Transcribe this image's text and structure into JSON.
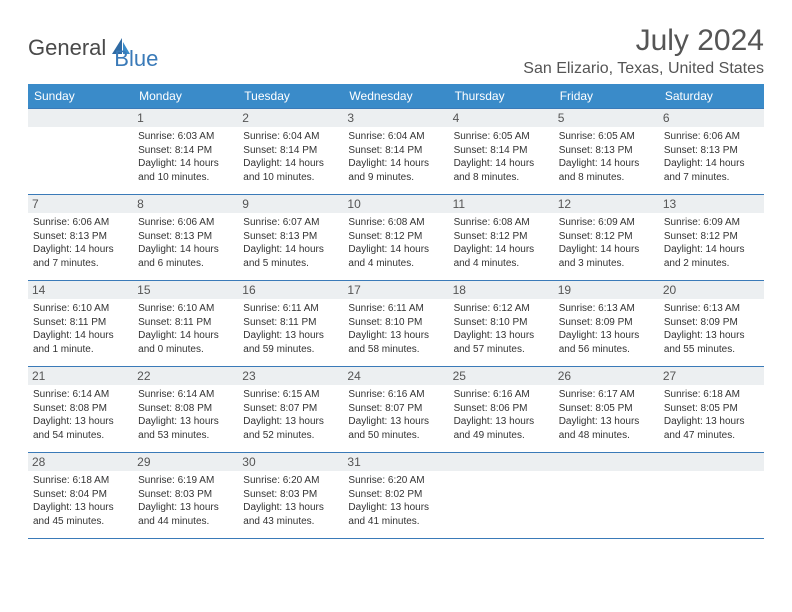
{
  "brand": {
    "part1": "General",
    "part2": "Blue"
  },
  "title": "July 2024",
  "location": "San Elizario, Texas, United States",
  "colors": {
    "header_bg": "#3a8bc9",
    "header_text": "#ffffff",
    "border": "#3a7ab8",
    "daynum_bg": "#eceff1",
    "text": "#333333",
    "brand_blue": "#3a7ab8",
    "brand_gray": "#4a4a4a"
  },
  "day_headers": [
    "Sunday",
    "Monday",
    "Tuesday",
    "Wednesday",
    "Thursday",
    "Friday",
    "Saturday"
  ],
  "weeks": [
    [
      {
        "n": "",
        "sr": "",
        "ss": "",
        "dl": ""
      },
      {
        "n": "1",
        "sr": "Sunrise: 6:03 AM",
        "ss": "Sunset: 8:14 PM",
        "dl": "Daylight: 14 hours and 10 minutes."
      },
      {
        "n": "2",
        "sr": "Sunrise: 6:04 AM",
        "ss": "Sunset: 8:14 PM",
        "dl": "Daylight: 14 hours and 10 minutes."
      },
      {
        "n": "3",
        "sr": "Sunrise: 6:04 AM",
        "ss": "Sunset: 8:14 PM",
        "dl": "Daylight: 14 hours and 9 minutes."
      },
      {
        "n": "4",
        "sr": "Sunrise: 6:05 AM",
        "ss": "Sunset: 8:14 PM",
        "dl": "Daylight: 14 hours and 8 minutes."
      },
      {
        "n": "5",
        "sr": "Sunrise: 6:05 AM",
        "ss": "Sunset: 8:13 PM",
        "dl": "Daylight: 14 hours and 8 minutes."
      },
      {
        "n": "6",
        "sr": "Sunrise: 6:06 AM",
        "ss": "Sunset: 8:13 PM",
        "dl": "Daylight: 14 hours and 7 minutes."
      }
    ],
    [
      {
        "n": "7",
        "sr": "Sunrise: 6:06 AM",
        "ss": "Sunset: 8:13 PM",
        "dl": "Daylight: 14 hours and 7 minutes."
      },
      {
        "n": "8",
        "sr": "Sunrise: 6:06 AM",
        "ss": "Sunset: 8:13 PM",
        "dl": "Daylight: 14 hours and 6 minutes."
      },
      {
        "n": "9",
        "sr": "Sunrise: 6:07 AM",
        "ss": "Sunset: 8:13 PM",
        "dl": "Daylight: 14 hours and 5 minutes."
      },
      {
        "n": "10",
        "sr": "Sunrise: 6:08 AM",
        "ss": "Sunset: 8:12 PM",
        "dl": "Daylight: 14 hours and 4 minutes."
      },
      {
        "n": "11",
        "sr": "Sunrise: 6:08 AM",
        "ss": "Sunset: 8:12 PM",
        "dl": "Daylight: 14 hours and 4 minutes."
      },
      {
        "n": "12",
        "sr": "Sunrise: 6:09 AM",
        "ss": "Sunset: 8:12 PM",
        "dl": "Daylight: 14 hours and 3 minutes."
      },
      {
        "n": "13",
        "sr": "Sunrise: 6:09 AM",
        "ss": "Sunset: 8:12 PM",
        "dl": "Daylight: 14 hours and 2 minutes."
      }
    ],
    [
      {
        "n": "14",
        "sr": "Sunrise: 6:10 AM",
        "ss": "Sunset: 8:11 PM",
        "dl": "Daylight: 14 hours and 1 minute."
      },
      {
        "n": "15",
        "sr": "Sunrise: 6:10 AM",
        "ss": "Sunset: 8:11 PM",
        "dl": "Daylight: 14 hours and 0 minutes."
      },
      {
        "n": "16",
        "sr": "Sunrise: 6:11 AM",
        "ss": "Sunset: 8:11 PM",
        "dl": "Daylight: 13 hours and 59 minutes."
      },
      {
        "n": "17",
        "sr": "Sunrise: 6:11 AM",
        "ss": "Sunset: 8:10 PM",
        "dl": "Daylight: 13 hours and 58 minutes."
      },
      {
        "n": "18",
        "sr": "Sunrise: 6:12 AM",
        "ss": "Sunset: 8:10 PM",
        "dl": "Daylight: 13 hours and 57 minutes."
      },
      {
        "n": "19",
        "sr": "Sunrise: 6:13 AM",
        "ss": "Sunset: 8:09 PM",
        "dl": "Daylight: 13 hours and 56 minutes."
      },
      {
        "n": "20",
        "sr": "Sunrise: 6:13 AM",
        "ss": "Sunset: 8:09 PM",
        "dl": "Daylight: 13 hours and 55 minutes."
      }
    ],
    [
      {
        "n": "21",
        "sr": "Sunrise: 6:14 AM",
        "ss": "Sunset: 8:08 PM",
        "dl": "Daylight: 13 hours and 54 minutes."
      },
      {
        "n": "22",
        "sr": "Sunrise: 6:14 AM",
        "ss": "Sunset: 8:08 PM",
        "dl": "Daylight: 13 hours and 53 minutes."
      },
      {
        "n": "23",
        "sr": "Sunrise: 6:15 AM",
        "ss": "Sunset: 8:07 PM",
        "dl": "Daylight: 13 hours and 52 minutes."
      },
      {
        "n": "24",
        "sr": "Sunrise: 6:16 AM",
        "ss": "Sunset: 8:07 PM",
        "dl": "Daylight: 13 hours and 50 minutes."
      },
      {
        "n": "25",
        "sr": "Sunrise: 6:16 AM",
        "ss": "Sunset: 8:06 PM",
        "dl": "Daylight: 13 hours and 49 minutes."
      },
      {
        "n": "26",
        "sr": "Sunrise: 6:17 AM",
        "ss": "Sunset: 8:05 PM",
        "dl": "Daylight: 13 hours and 48 minutes."
      },
      {
        "n": "27",
        "sr": "Sunrise: 6:18 AM",
        "ss": "Sunset: 8:05 PM",
        "dl": "Daylight: 13 hours and 47 minutes."
      }
    ],
    [
      {
        "n": "28",
        "sr": "Sunrise: 6:18 AM",
        "ss": "Sunset: 8:04 PM",
        "dl": "Daylight: 13 hours and 45 minutes."
      },
      {
        "n": "29",
        "sr": "Sunrise: 6:19 AM",
        "ss": "Sunset: 8:03 PM",
        "dl": "Daylight: 13 hours and 44 minutes."
      },
      {
        "n": "30",
        "sr": "Sunrise: 6:20 AM",
        "ss": "Sunset: 8:03 PM",
        "dl": "Daylight: 13 hours and 43 minutes."
      },
      {
        "n": "31",
        "sr": "Sunrise: 6:20 AM",
        "ss": "Sunset: 8:02 PM",
        "dl": "Daylight: 13 hours and 41 minutes."
      },
      {
        "n": "",
        "sr": "",
        "ss": "",
        "dl": ""
      },
      {
        "n": "",
        "sr": "",
        "ss": "",
        "dl": ""
      },
      {
        "n": "",
        "sr": "",
        "ss": "",
        "dl": ""
      }
    ]
  ]
}
